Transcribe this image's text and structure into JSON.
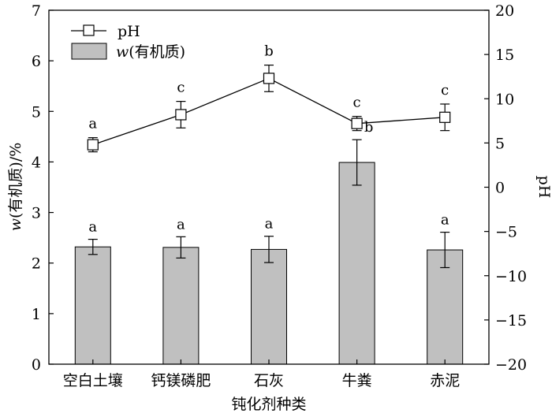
{
  "chart_data": {
    "type": "bar+line",
    "categories": [
      "空白土壤",
      "钙镁磷肥",
      "石灰",
      "牛粪",
      "赤泥"
    ],
    "xlabel": "钝化剂种类",
    "ylabel_left": "w(有机质)/%",
    "ylabel_left_italic": "w",
    "ylabel_left_rest": "(有机质)/%",
    "ylabel_right": "pH",
    "ylim_left": [
      0,
      7
    ],
    "ylim_right": [
      -20,
      20
    ],
    "yticks_left": [
      0,
      1,
      2,
      3,
      4,
      5,
      6,
      7
    ],
    "yticks_right": [
      -20,
      -15,
      -10,
      -5,
      0,
      5,
      10,
      15,
      20
    ],
    "series": [
      {
        "name": "w(有机质)",
        "name_italic": "w",
        "name_rest": "(有机质)",
        "type": "bar",
        "axis": "left",
        "color": "#c0c0c0",
        "values": [
          2.32,
          2.31,
          2.27,
          3.99,
          2.26
        ],
        "errors": [
          0.15,
          0.21,
          0.26,
          0.45,
          0.35
        ],
        "significance": [
          "a",
          "a",
          "a",
          "b",
          "a"
        ]
      },
      {
        "name": "pH",
        "type": "line",
        "axis": "right",
        "marker": "square-open",
        "values": [
          4.8,
          8.2,
          12.3,
          7.2,
          7.9
        ],
        "errors": [
          0.8,
          1.5,
          1.5,
          0.8,
          1.5
        ],
        "significance": [
          "a",
          "c",
          "b",
          "c",
          "c"
        ]
      }
    ],
    "legend": "top-left",
    "grid": false
  }
}
